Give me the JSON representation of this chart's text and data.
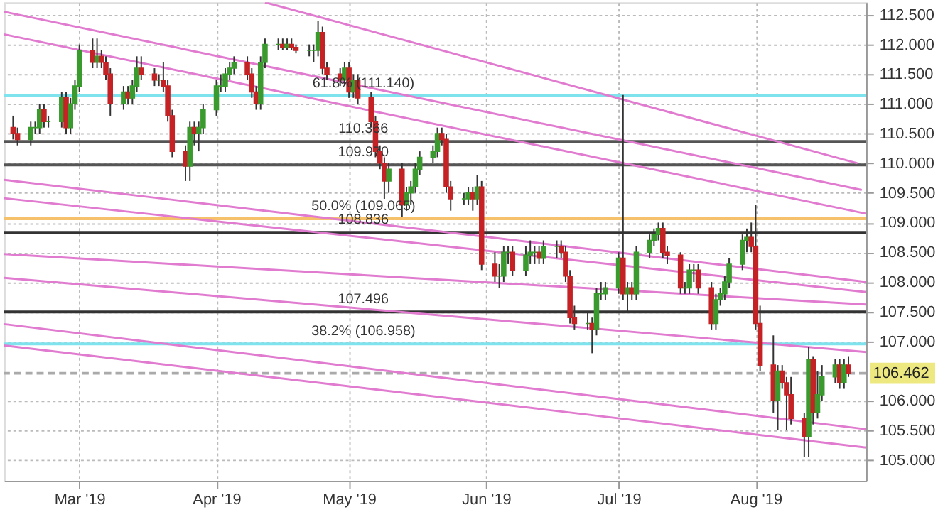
{
  "chart_data": {
    "type": "candlestick",
    "x": [
      "2019-02-14",
      "2019-02-15",
      "2019-02-18",
      "2019-02-19",
      "2019-02-20",
      "2019-02-21",
      "2019-02-22",
      "2019-02-25",
      "2019-02-26",
      "2019-02-27",
      "2019-02-28",
      "2019-03-01",
      "2019-03-04",
      "2019-03-05",
      "2019-03-06",
      "2019-03-07",
      "2019-03-08",
      "2019-03-11",
      "2019-03-12",
      "2019-03-13",
      "2019-03-14",
      "2019-03-15",
      "2019-03-18",
      "2019-03-19",
      "2019-03-20",
      "2019-03-21",
      "2019-03-22",
      "2019-03-25",
      "2019-03-26",
      "2019-03-27",
      "2019-03-28",
      "2019-03-29",
      "2019-04-01",
      "2019-04-02",
      "2019-04-03",
      "2019-04-04",
      "2019-04-05",
      "2019-04-08",
      "2019-04-09",
      "2019-04-10",
      "2019-04-11",
      "2019-04-12",
      "2019-04-15",
      "2019-04-16",
      "2019-04-17",
      "2019-04-18",
      "2019-04-19",
      "2019-04-22",
      "2019-04-23",
      "2019-04-24",
      "2019-04-25",
      "2019-04-26",
      "2019-04-29",
      "2019-04-30",
      "2019-05-01",
      "2019-05-02",
      "2019-05-03",
      "2019-05-06",
      "2019-05-07",
      "2019-05-08",
      "2019-05-09",
      "2019-05-10",
      "2019-05-13",
      "2019-05-14",
      "2019-05-15",
      "2019-05-16",
      "2019-05-17",
      "2019-05-20",
      "2019-05-21",
      "2019-05-22",
      "2019-05-23",
      "2019-05-24",
      "2019-05-27",
      "2019-05-28",
      "2019-05-29",
      "2019-05-30",
      "2019-05-31",
      "2019-06-03",
      "2019-06-04",
      "2019-06-05",
      "2019-06-06",
      "2019-06-07",
      "2019-06-10",
      "2019-06-11",
      "2019-06-12",
      "2019-06-13",
      "2019-06-14",
      "2019-06-17",
      "2019-06-18",
      "2019-06-19",
      "2019-06-20",
      "2019-06-21",
      "2019-06-24",
      "2019-06-25",
      "2019-06-26",
      "2019-06-27",
      "2019-06-28",
      "2019-07-01",
      "2019-07-02",
      "2019-07-03",
      "2019-07-04",
      "2019-07-05",
      "2019-07-08",
      "2019-07-09",
      "2019-07-10",
      "2019-07-11",
      "2019-07-12",
      "2019-07-15",
      "2019-07-16",
      "2019-07-17",
      "2019-07-18",
      "2019-07-19",
      "2019-07-22",
      "2019-07-23",
      "2019-07-24",
      "2019-07-25",
      "2019-07-26",
      "2019-07-29",
      "2019-07-30",
      "2019-07-31",
      "2019-08-01",
      "2019-08-02",
      "2019-08-05",
      "2019-08-06",
      "2019-08-07",
      "2019-08-08",
      "2019-08-09",
      "2019-08-12",
      "2019-08-13",
      "2019-08-14",
      "2019-08-15",
      "2019-08-16",
      "2019-08-19",
      "2019-08-20",
      "2019-08-21",
      "2019-08-22"
    ],
    "ohlc": [
      [
        110.6,
        110.8,
        110.4,
        110.5
      ],
      [
        110.5,
        110.6,
        110.3,
        110.4
      ],
      [
        110.4,
        110.7,
        110.3,
        110.6
      ],
      [
        110.6,
        110.7,
        110.5,
        110.6
      ],
      [
        110.6,
        111.0,
        110.5,
        110.9
      ],
      [
        110.9,
        111.0,
        110.6,
        110.7
      ],
      [
        110.7,
        110.8,
        110.6,
        110.7
      ],
      [
        110.7,
        111.2,
        110.6,
        111.1
      ],
      [
        111.1,
        111.2,
        110.5,
        110.6
      ],
      [
        110.6,
        111.1,
        110.5,
        111.0
      ],
      [
        111.0,
        111.4,
        110.9,
        111.3
      ],
      [
        111.3,
        112.0,
        111.2,
        111.9
      ],
      [
        111.9,
        112.1,
        111.6,
        111.7
      ],
      [
        111.7,
        112.1,
        111.6,
        111.8
      ],
      [
        111.8,
        111.9,
        111.6,
        111.7
      ],
      [
        111.7,
        111.8,
        111.4,
        111.5
      ],
      [
        111.5,
        111.6,
        110.8,
        111.0
      ],
      [
        111.0,
        111.3,
        110.9,
        111.2
      ],
      [
        111.2,
        111.3,
        111.0,
        111.1
      ],
      [
        111.1,
        111.4,
        111.0,
        111.3
      ],
      [
        111.3,
        111.8,
        111.2,
        111.6
      ],
      [
        111.6,
        111.8,
        111.4,
        111.5
      ],
      [
        111.5,
        111.6,
        111.3,
        111.4
      ],
      [
        111.4,
        111.5,
        111.3,
        111.4
      ],
      [
        111.4,
        111.7,
        111.2,
        111.3
      ],
      [
        111.3,
        111.4,
        110.7,
        110.8
      ],
      [
        110.8,
        110.9,
        110.1,
        110.2
      ],
      [
        110.2,
        110.3,
        109.7,
        109.95
      ],
      [
        109.95,
        110.7,
        109.7,
        110.6
      ],
      [
        110.6,
        110.7,
        110.3,
        110.5
      ],
      [
        110.5,
        110.7,
        110.2,
        110.6
      ],
      [
        110.6,
        111.0,
        110.5,
        110.9
      ],
      [
        110.9,
        111.4,
        110.8,
        111.3
      ],
      [
        111.3,
        111.5,
        111.2,
        111.3
      ],
      [
        111.3,
        111.6,
        111.2,
        111.5
      ],
      [
        111.5,
        111.7,
        111.4,
        111.6
      ],
      [
        111.6,
        111.8,
        111.5,
        111.7
      ],
      [
        111.7,
        111.8,
        111.4,
        111.5
      ],
      [
        111.5,
        111.6,
        111.1,
        111.2
      ],
      [
        111.2,
        111.3,
        110.9,
        111.0
      ],
      [
        111.0,
        111.8,
        110.9,
        111.7
      ],
      [
        111.7,
        112.1,
        111.6,
        112.0
      ],
      [
        112.0,
        112.1,
        111.9,
        112.0
      ],
      [
        112.0,
        112.1,
        111.9,
        111.95
      ],
      [
        111.95,
        112.1,
        111.9,
        112.0
      ],
      [
        112.0,
        112.1,
        111.9,
        111.95
      ],
      [
        111.95,
        112.0,
        111.85,
        111.9
      ],
      [
        111.9,
        112.0,
        111.8,
        111.9
      ],
      [
        111.9,
        112.0,
        111.7,
        111.9
      ],
      [
        111.9,
        112.4,
        111.8,
        112.2
      ],
      [
        112.2,
        112.3,
        111.5,
        111.6
      ],
      [
        111.6,
        111.7,
        111.4,
        111.5
      ],
      [
        111.5,
        111.6,
        111.3,
        111.4
      ],
      [
        111.4,
        111.7,
        111.3,
        111.6
      ],
      [
        111.6,
        111.7,
        111.1,
        111.2
      ],
      [
        111.2,
        111.5,
        111.1,
        111.4
      ],
      [
        111.4,
        111.5,
        111.0,
        111.1
      ],
      [
        111.1,
        111.2,
        110.6,
        110.7
      ],
      [
        110.7,
        110.8,
        110.1,
        110.2
      ],
      [
        110.2,
        110.3,
        109.9,
        110.0
      ],
      [
        110.0,
        110.1,
        109.4,
        109.7
      ],
      [
        109.7,
        110.0,
        109.5,
        109.9
      ],
      [
        109.9,
        110.0,
        109.1,
        109.3
      ],
      [
        109.3,
        109.6,
        109.2,
        109.5
      ],
      [
        109.5,
        109.7,
        109.3,
        109.6
      ],
      [
        109.6,
        110.0,
        109.5,
        109.9
      ],
      [
        109.9,
        110.2,
        109.8,
        110.1
      ],
      [
        110.1,
        110.3,
        110.0,
        110.2
      ],
      [
        110.2,
        110.6,
        110.1,
        110.5
      ],
      [
        110.5,
        110.6,
        110.3,
        110.4
      ],
      [
        110.4,
        110.5,
        109.5,
        109.6
      ],
      [
        109.6,
        109.7,
        109.2,
        109.4
      ],
      [
        109.4,
        109.5,
        109.3,
        109.4
      ],
      [
        109.4,
        109.6,
        109.3,
        109.5
      ],
      [
        109.5,
        109.6,
        109.2,
        109.4
      ],
      [
        109.4,
        109.8,
        109.3,
        109.6
      ],
      [
        109.6,
        109.7,
        108.2,
        108.3
      ],
      [
        108.3,
        108.5,
        108.0,
        108.1
      ],
      [
        108.1,
        108.3,
        107.9,
        108.1
      ],
      [
        108.1,
        108.6,
        108.0,
        108.5
      ],
      [
        108.5,
        108.6,
        108.3,
        108.5
      ],
      [
        108.5,
        108.6,
        108.1,
        108.2
      ],
      [
        108.2,
        108.6,
        108.1,
        108.45
      ],
      [
        108.45,
        108.7,
        108.3,
        108.5
      ],
      [
        108.5,
        108.6,
        108.3,
        108.5
      ],
      [
        108.5,
        108.6,
        108.3,
        108.4
      ],
      [
        108.4,
        108.7,
        108.3,
        108.6
      ],
      [
        108.6,
        108.7,
        108.4,
        108.6
      ],
      [
        108.6,
        108.7,
        108.4,
        108.5
      ],
      [
        108.5,
        108.6,
        108.0,
        108.1
      ],
      [
        108.1,
        108.2,
        107.3,
        107.4
      ],
      [
        107.4,
        107.6,
        107.2,
        107.3
      ],
      [
        107.3,
        107.5,
        107.2,
        107.3
      ],
      [
        107.3,
        107.4,
        106.8,
        107.2
      ],
      [
        107.2,
        107.9,
        107.1,
        107.8
      ],
      [
        107.8,
        108.0,
        107.7,
        107.8
      ],
      [
        107.8,
        108.0,
        107.7,
        107.9
      ],
      [
        107.9,
        108.5,
        107.8,
        108.4
      ],
      [
        108.4,
        111.15,
        107.7,
        107.8
      ],
      [
        107.8,
        108.0,
        107.5,
        107.9
      ],
      [
        107.9,
        108.0,
        107.7,
        107.8
      ],
      [
        107.8,
        108.6,
        107.7,
        108.5
      ],
      [
        108.5,
        108.8,
        108.4,
        108.7
      ],
      [
        108.7,
        108.9,
        108.6,
        108.8
      ],
      [
        108.8,
        109.0,
        108.7,
        108.9
      ],
      [
        108.9,
        109.0,
        108.4,
        108.5
      ],
      [
        108.5,
        108.6,
        108.3,
        108.45
      ],
      [
        108.45,
        108.5,
        107.8,
        107.9
      ],
      [
        107.9,
        108.0,
        107.8,
        107.9
      ],
      [
        107.9,
        108.3,
        107.8,
        108.2
      ],
      [
        108.2,
        108.3,
        108.0,
        108.2
      ],
      [
        108.2,
        108.3,
        107.8,
        107.9
      ],
      [
        107.9,
        108.0,
        107.2,
        107.3
      ],
      [
        107.3,
        107.8,
        107.2,
        107.7
      ],
      [
        107.7,
        107.9,
        107.6,
        107.8
      ],
      [
        107.8,
        108.1,
        107.7,
        108.0
      ],
      [
        108.0,
        108.4,
        107.9,
        108.3
      ],
      [
        108.3,
        108.8,
        108.2,
        108.7
      ],
      [
        108.7,
        108.9,
        108.5,
        108.75
      ],
      [
        108.75,
        109.0,
        108.5,
        108.6
      ],
      [
        108.6,
        109.3,
        107.2,
        107.3
      ],
      [
        107.3,
        107.6,
        106.5,
        106.6
      ],
      [
        106.6,
        107.1,
        105.8,
        106.0
      ],
      [
        106.0,
        106.6,
        105.5,
        106.5
      ],
      [
        106.5,
        106.6,
        106.2,
        106.3
      ],
      [
        106.3,
        106.4,
        105.5,
        106.1
      ],
      [
        106.1,
        106.4,
        105.6,
        105.7
      ],
      [
        105.7,
        105.8,
        105.05,
        105.4
      ],
      [
        105.4,
        106.9,
        105.05,
        106.7
      ],
      [
        106.7,
        106.75,
        105.6,
        105.8
      ],
      [
        105.8,
        106.5,
        105.7,
        106.1
      ],
      [
        106.1,
        106.6,
        106.0,
        106.4
      ],
      [
        106.4,
        106.7,
        106.3,
        106.6
      ],
      [
        106.6,
        106.7,
        106.2,
        106.3
      ],
      [
        106.3,
        106.7,
        106.2,
        106.6
      ],
      [
        106.6,
        106.75,
        106.4,
        106.462
      ]
    ],
    "xlim": [
      "2019-02-12",
      "2019-08-26"
    ],
    "xticks": [
      {
        "value": "2019-03-01",
        "label": "Mar '19"
      },
      {
        "value": "2019-04-01",
        "label": "Apr '19"
      },
      {
        "value": "2019-05-01",
        "label": "May '19"
      },
      {
        "value": "2019-06-01",
        "label": "Jun '19"
      },
      {
        "value": "2019-07-01",
        "label": "Jul '19"
      },
      {
        "value": "2019-08-01",
        "label": "Aug '19"
      }
    ],
    "ylim": [
      104.65,
      112.71
    ],
    "yticks": [
      {
        "value": 105,
        "label": "105.000"
      },
      {
        "value": 105.5,
        "label": "105.500"
      },
      {
        "value": 106,
        "label": "106.000"
      },
      {
        "value": 107,
        "label": "107.000"
      },
      {
        "value": 107.5,
        "label": "107.500"
      },
      {
        "value": 108,
        "label": "108.000"
      },
      {
        "value": 108.5,
        "label": "108.500"
      },
      {
        "value": 109,
        "label": "109.000"
      },
      {
        "value": 109.5,
        "label": "109.500"
      },
      {
        "value": 110,
        "label": "110.000"
      },
      {
        "value": 110.5,
        "label": "110.500"
      },
      {
        "value": 111,
        "label": "111.000"
      },
      {
        "value": 111.5,
        "label": "111.500"
      },
      {
        "value": 112,
        "label": "112.000"
      },
      {
        "value": 112.5,
        "label": "112.500"
      }
    ],
    "grid": true,
    "ref_lines": [
      {
        "axis": "y",
        "value": 111.14,
        "label": "61.8% (111.140)",
        "color": "#7fe3ee"
      },
      {
        "axis": "y",
        "value": 110.366,
        "label": "110.366",
        "color": "#555555"
      },
      {
        "axis": "y",
        "value": 109.97,
        "label": "109.970",
        "color": "#555555"
      },
      {
        "axis": "y",
        "value": 109.065,
        "label": "50.0% (109.065)",
        "color": "#f5c26b"
      },
      {
        "axis": "y",
        "value": 108.836,
        "label": "108.836",
        "color": "#333333"
      },
      {
        "axis": "y",
        "value": 107.496,
        "label": "107.496",
        "color": "#333333"
      },
      {
        "axis": "y",
        "value": 106.958,
        "label": "38.2% (106.958)",
        "color": "#7fe3ee"
      },
      {
        "axis": "y",
        "value": 106.462,
        "label": "106.462",
        "color": "#aaaaaa",
        "line_style": "dashed"
      }
    ],
    "series": [
      {
        "type": "line",
        "color": "#e07bd0",
        "x": [
          "2019-04-12",
          "2019-08-24"
        ],
        "values": [
          112.71,
          110.0
        ]
      },
      {
        "type": "line",
        "color": "#e07bd0",
        "x": [
          "2019-02-12",
          "2019-08-25"
        ],
        "values": [
          112.55,
          109.55
        ]
      },
      {
        "type": "line",
        "color": "#e07bd0",
        "x": [
          "2019-02-12",
          "2019-08-26"
        ],
        "values": [
          112.17,
          109.15
        ]
      },
      {
        "type": "line",
        "color": "#e07bd0",
        "x": [
          "2019-02-12",
          "2019-08-26"
        ],
        "values": [
          109.72,
          108.0
        ]
      },
      {
        "type": "line",
        "color": "#e07bd0",
        "x": [
          "2019-02-12",
          "2019-08-26"
        ],
        "values": [
          109.41,
          107.83
        ]
      },
      {
        "type": "line",
        "color": "#e07bd0",
        "x": [
          "2019-02-12",
          "2019-08-26"
        ],
        "values": [
          108.47,
          107.62
        ]
      },
      {
        "type": "line",
        "color": "#e07bd0",
        "x": [
          "2019-02-12",
          "2019-08-26"
        ],
        "values": [
          108.07,
          106.82
        ]
      },
      {
        "type": "line",
        "color": "#e07bd0",
        "x": [
          "2019-02-12",
          "2019-08-26"
        ],
        "values": [
          107.29,
          105.52
        ]
      },
      {
        "type": "line",
        "color": "#e07bd0",
        "x": [
          "2019-02-12",
          "2019-08-26"
        ],
        "values": [
          106.93,
          105.21
        ]
      }
    ]
  }
}
